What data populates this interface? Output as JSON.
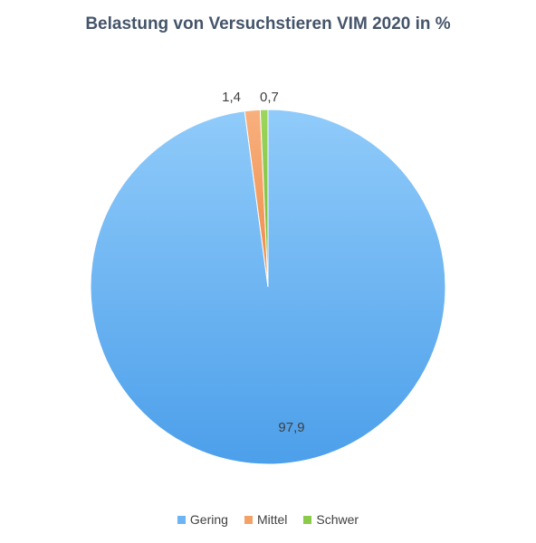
{
  "chart_data": {
    "type": "pie",
    "title": "Belastung von Versuchstieren VIM 2020 in %",
    "categories": [
      "Gering",
      "Mittel",
      "Schwer"
    ],
    "values": [
      97.9,
      1.4,
      0.7
    ],
    "value_labels": [
      "97,9",
      "1,4",
      "0,7"
    ],
    "colors": [
      "#7FBFF7",
      "#F4A167",
      "#8BCB4A"
    ],
    "legend_position": "bottom"
  }
}
